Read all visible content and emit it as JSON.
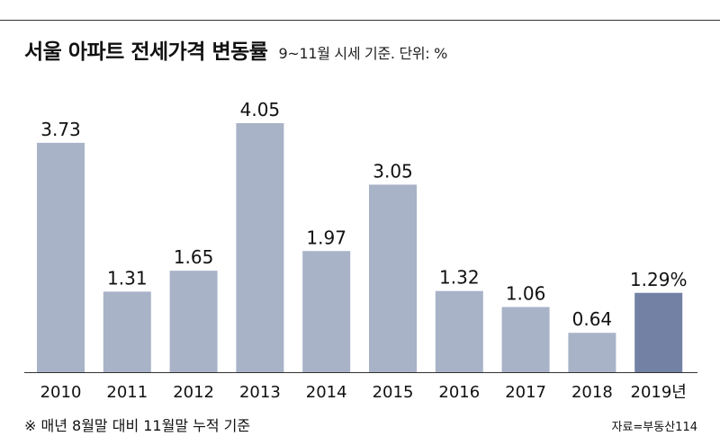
{
  "header": {
    "title": "서울 아파트 전세가격 변동률",
    "subtitle": "9~11월 시세 기준. 단위: %"
  },
  "footer": {
    "note": "※ 매년 8월말 대비 11월말 누적 기준",
    "source": "자료=부동산114"
  },
  "colors": {
    "bar": "#a8b3c8",
    "bar_highlight": "#7281a4",
    "axis": "#333333"
  },
  "chart_data": {
    "type": "bar",
    "title": "서울 아파트 전세가격 변동률",
    "subtitle": "9~11월 시세 기준. 단위: %",
    "categories": [
      "2010",
      "2011",
      "2012",
      "2013",
      "2014",
      "2015",
      "2016",
      "2017",
      "2018",
      "2019년"
    ],
    "values": [
      3.73,
      1.31,
      1.65,
      4.05,
      1.97,
      3.05,
      1.32,
      1.06,
      0.64,
      1.29
    ],
    "value_labels": [
      "3.73",
      "1.31",
      "1.65",
      "4.05",
      "1.97",
      "3.05",
      "1.32",
      "1.06",
      "0.64",
      "1.29%"
    ],
    "highlight_index": 9,
    "xlabel": "",
    "ylabel": "",
    "ylim": [
      0,
      4.5
    ],
    "grid": false,
    "legend": "none"
  }
}
